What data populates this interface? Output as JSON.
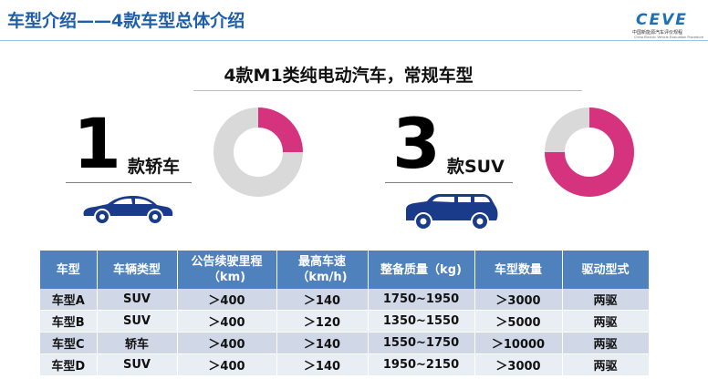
{
  "slide": {
    "title": "车型介绍——4款车型总体介绍"
  },
  "logo": {
    "word": "CEVE",
    "cn": "中国新能源汽车评价规程",
    "en": "China Electric Vehicle Evaluation Procedure"
  },
  "subtitle": "4款M1类纯电动汽车，常规车型",
  "summary": [
    {
      "count": "1",
      "label": "款轿车",
      "fraction": 0.25,
      "icon": "sedan-icon"
    },
    {
      "count": "3",
      "label": "款SUV",
      "fraction": 0.75,
      "icon": "suv-icon"
    }
  ],
  "colors": {
    "accent": "#d6337f",
    "donut_rest": "#d9d9d9",
    "header": "#4f81bd",
    "title": "#1f5fa8",
    "car": "#1a3a8a"
  },
  "table": {
    "headers": [
      {
        "line1": "车型",
        "line2": ""
      },
      {
        "line1": "车辆类型",
        "line2": ""
      },
      {
        "line1": "公告续驶里程",
        "line2": "（km)"
      },
      {
        "line1": "最高车速",
        "line2": "（km/h)"
      },
      {
        "line1": "整备质量（kg)",
        "line2": ""
      },
      {
        "line1": "车型数量",
        "line2": ""
      },
      {
        "line1": "驱动型式",
        "line2": ""
      }
    ],
    "rows": [
      [
        "车型A",
        "SUV",
        "＞400",
        "＞140",
        "1750~1950",
        "＞3000",
        "两驱"
      ],
      [
        "车型B",
        "SUV",
        "＞400",
        "＞120",
        "1350~1550",
        "＞5000",
        "两驱"
      ],
      [
        "车型C",
        "轿车",
        "＞400",
        "＞140",
        "1550~1750",
        "＞10000",
        "两驱"
      ],
      [
        "车型D",
        "SUV",
        "＞400",
        "＞140",
        "1950~2150",
        "＞3000",
        "两驱"
      ]
    ]
  }
}
